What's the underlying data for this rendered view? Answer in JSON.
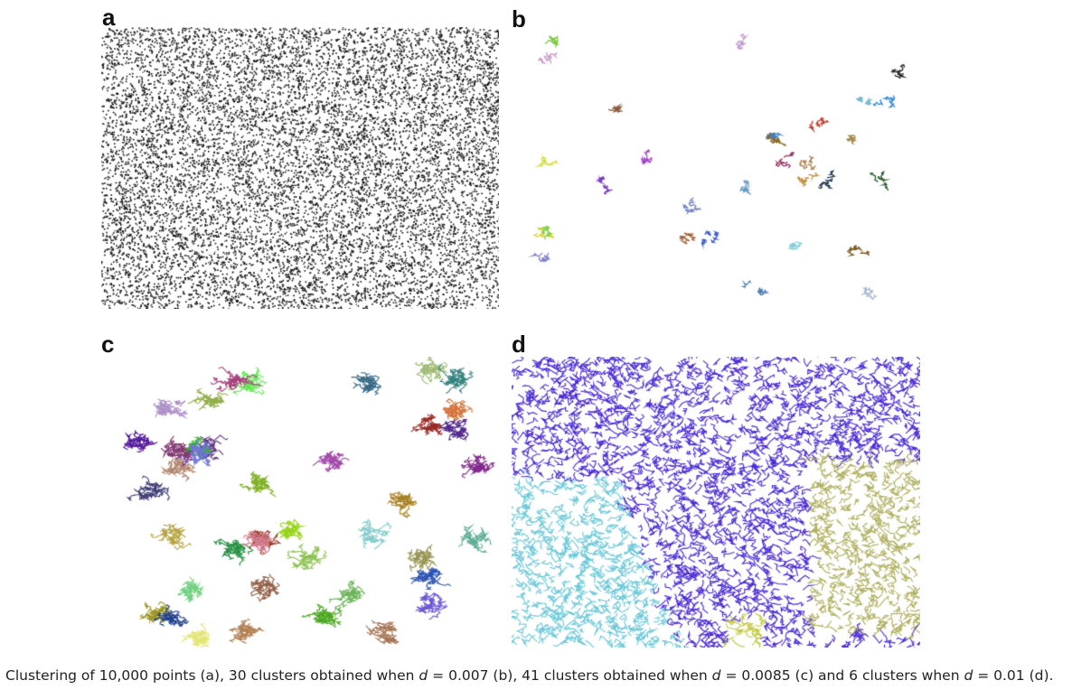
{
  "figure": {
    "panels": [
      {
        "label": "a",
        "description_type": "point-scatter",
        "clusters": 1
      },
      {
        "label": "b",
        "description_type": "cluster-plot",
        "clusters": 30
      },
      {
        "label": "c",
        "description_type": "cluster-plot",
        "clusters": 41
      },
      {
        "label": "d",
        "description_type": "cluster-plot",
        "clusters": 6
      }
    ],
    "caption": {
      "part1": "Clustering of 10,000 points (a), 30 clusters obtained when ",
      "var1": "d",
      "part2": " = 0.007 (b), 41 clusters obtained when ",
      "var2": "d",
      "part3": " = 0.0085 (c) and 6 clusters when ",
      "var3": "d",
      "part4": " = 0.01 (d)."
    }
  },
  "chart_data": [
    {
      "type": "scatter",
      "panel": "a",
      "points": 10000,
      "clusters": 1,
      "colors": [
        "#111111"
      ]
    },
    {
      "type": "scatter",
      "panel": "b",
      "points": 10000,
      "d": 0.007,
      "clusters": 30,
      "colors": [
        "#8a5a3a",
        "#3a7ac8",
        "#7ac840",
        "#3a8ad8",
        "#2a5a2a",
        "#c03a2a",
        "#9a3a6a",
        "#7a3ac8",
        "#a08a50",
        "#d8e040",
        "#c8a0c8",
        "#2a2a2a",
        "#e0d030",
        "#70b8d0",
        "#c09040",
        "#7080c0",
        "#3a5ac8",
        "#8a6a20",
        "#a8b8d0",
        "#a040c0",
        "#8080c8",
        "#b08050",
        "#7a5a20",
        "#80d0d8",
        "#5080b0",
        "#203a50",
        "#a06030",
        "#80d050",
        "#c0a0d0",
        "#6a9ac8"
      ]
    },
    {
      "type": "scatter",
      "panel": "c",
      "points": 10000,
      "d": 0.0085,
      "clusters": 41
    },
    {
      "type": "scatter",
      "panel": "d",
      "points": 10000,
      "d": 0.01,
      "clusters": 6,
      "colors": [
        "#4a28d8",
        "#6ac8d8",
        "#b0b060",
        "#c0c840",
        "#9ad0e0",
        "#6a40c8"
      ]
    }
  ]
}
